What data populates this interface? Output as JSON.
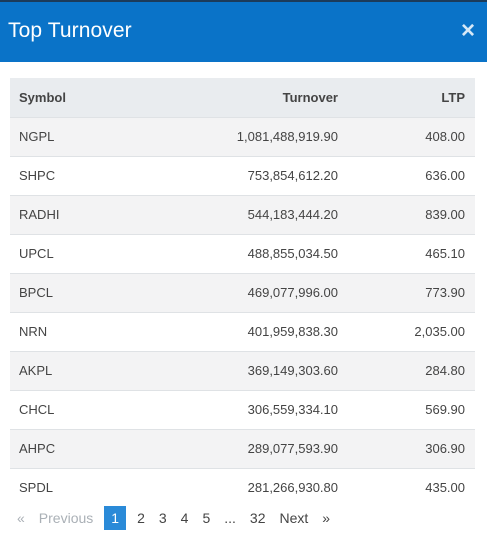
{
  "modal": {
    "title": "Top Turnover",
    "close_label": "×"
  },
  "table": {
    "columns": [
      "Symbol",
      "Turnover",
      "LTP"
    ],
    "rows": [
      [
        "NGPL",
        "1,081,488,919.90",
        "408.00"
      ],
      [
        "SHPC",
        "753,854,612.20",
        "636.00"
      ],
      [
        "RADHI",
        "544,183,444.20",
        "839.00"
      ],
      [
        "UPCL",
        "488,855,034.50",
        "465.10"
      ],
      [
        "BPCL",
        "469,077,996.00",
        "773.90"
      ],
      [
        "NRN",
        "401,959,838.30",
        "2,035.00"
      ],
      [
        "AKPL",
        "369,149,303.60",
        "284.80"
      ],
      [
        "CHCL",
        "306,559,334.10",
        "569.90"
      ],
      [
        "AHPC",
        "289,077,593.90",
        "306.90"
      ],
      [
        "SPDL",
        "281,266,930.80",
        "435.00"
      ]
    ]
  },
  "pagination": {
    "first_icon": "«",
    "previous": "Previous",
    "pages": [
      "1",
      "2",
      "3",
      "4",
      "5"
    ],
    "ellipsis": "...",
    "last_page": "32",
    "next": "Next",
    "last_icon": "»",
    "active_page": "1"
  },
  "colors": {
    "header": "#0a73c8",
    "active_page": "#2a8ad8"
  }
}
